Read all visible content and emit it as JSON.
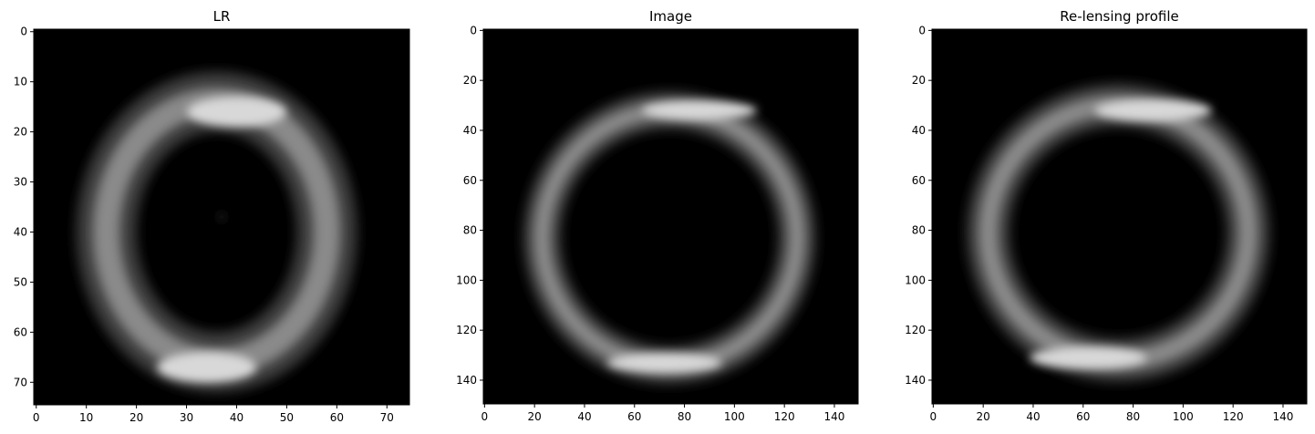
{
  "chart_data": [
    {
      "type": "heatmap",
      "title": "LR",
      "colormap": "gray",
      "xlim": [
        -0.5,
        74.5
      ],
      "ylim": [
        74.5,
        -0.5
      ],
      "xticks": [
        0,
        10,
        20,
        30,
        40,
        50,
        60,
        70
      ],
      "yticks": [
        0,
        10,
        20,
        30,
        40,
        50,
        60,
        70
      ],
      "xlabel": "",
      "ylabel": "",
      "ring": {
        "cx": 36,
        "cy": 40,
        "rx": 22,
        "ry": 26,
        "width": 5.5,
        "bright_spots": [
          [
            40,
            16
          ],
          [
            34,
            67
          ]
        ],
        "center_dot": [
          37,
          37
        ]
      }
    },
    {
      "type": "heatmap",
      "title": "Image",
      "colormap": "gray",
      "xlim": [
        -0.5,
        149.5
      ],
      "ylim": [
        149.5,
        -0.5
      ],
      "xticks": [
        0,
        20,
        40,
        60,
        80,
        100,
        120,
        140
      ],
      "yticks": [
        0,
        20,
        40,
        60,
        80,
        100,
        120,
        140
      ],
      "xlabel": "",
      "ylabel": "",
      "ring": {
        "cx": 74,
        "cy": 83,
        "rx": 51,
        "ry": 51,
        "width": 7,
        "bright_spots": [
          [
            86,
            32
          ],
          [
            72,
            133
          ]
        ],
        "center_dot": null
      }
    },
    {
      "type": "heatmap",
      "title": "Re-lensing profile",
      "colormap": "gray",
      "xlim": [
        -0.5,
        149.5
      ],
      "ylim": [
        149.5,
        -0.5
      ],
      "xticks": [
        0,
        20,
        40,
        60,
        80,
        100,
        120,
        140
      ],
      "yticks": [
        0,
        20,
        40,
        60,
        80,
        100,
        120,
        140
      ],
      "xlabel": "",
      "ylabel": "",
      "ring": {
        "cx": 74,
        "cy": 81,
        "rx": 52,
        "ry": 51,
        "width": 8,
        "bright_spots": [
          [
            88,
            32
          ],
          [
            62,
            131
          ]
        ],
        "center_dot": null
      }
    }
  ]
}
